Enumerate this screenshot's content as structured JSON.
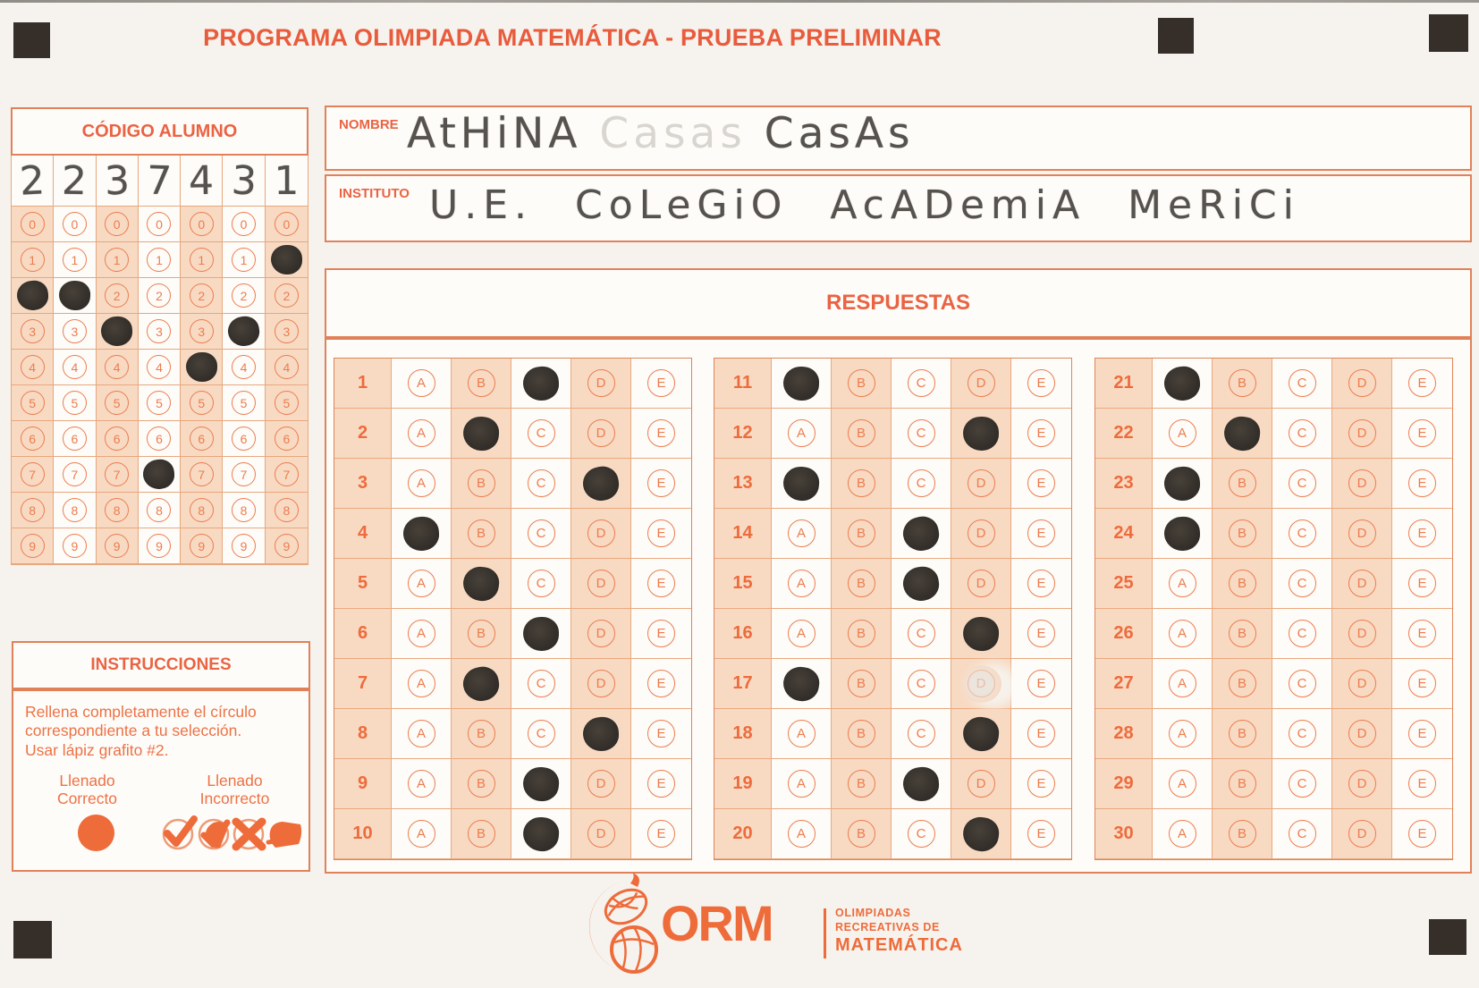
{
  "page": {
    "title": "PROGRAMA OLIMPIADA MATEMÁTICA - PRUEBA PRELIMINAR"
  },
  "colors": {
    "accent": "#ee6b3a",
    "tint": "#f8dac3",
    "grid_line": "#eaa87e",
    "pencil_mark": "#332e29",
    "pencil_handwriting": "#56524d",
    "registration_mark": "#362f29"
  },
  "codigo": {
    "title": "CÓDIGO ALUMNO",
    "handwritten_digits": [
      "2",
      "2",
      "3",
      "7",
      "4",
      "3",
      "1"
    ],
    "bubble_digits": [
      "0",
      "1",
      "2",
      "3",
      "4",
      "5",
      "6",
      "7",
      "8",
      "9"
    ],
    "filled_per_column": [
      2,
      2,
      3,
      7,
      4,
      3,
      1
    ]
  },
  "fields": {
    "nombre": {
      "label": "NOMBRE",
      "value_part1": "AtHiNA",
      "erased_ghost": "Casas",
      "value_part2": "CasAs"
    },
    "instituto": {
      "label": "INSTITUTO",
      "value": "U.E. CoLeGiO AcADemiA MeRiCi"
    }
  },
  "respuestas": {
    "title": "RESPUESTAS",
    "options": [
      "A",
      "B",
      "C",
      "D",
      "E"
    ],
    "blocks": [
      {
        "from": 1,
        "to": 10
      },
      {
        "from": 11,
        "to": 20
      },
      {
        "from": 21,
        "to": 30
      }
    ],
    "answers": [
      {
        "q": 1,
        "marked": "C"
      },
      {
        "q": 2,
        "marked": "B"
      },
      {
        "q": 3,
        "marked": "D"
      },
      {
        "q": 4,
        "marked": "A"
      },
      {
        "q": 5,
        "marked": "B"
      },
      {
        "q": 6,
        "marked": "C"
      },
      {
        "q": 7,
        "marked": "B"
      },
      {
        "q": 8,
        "marked": "D"
      },
      {
        "q": 9,
        "marked": "C"
      },
      {
        "q": 10,
        "marked": "C"
      },
      {
        "q": 11,
        "marked": "A"
      },
      {
        "q": 12,
        "marked": "D"
      },
      {
        "q": 13,
        "marked": "A"
      },
      {
        "q": 14,
        "marked": "C"
      },
      {
        "q": 15,
        "marked": "C"
      },
      {
        "q": 16,
        "marked": "D"
      },
      {
        "q": 17,
        "marked": "A",
        "erased": "D"
      },
      {
        "q": 18,
        "marked": "D"
      },
      {
        "q": 19,
        "marked": "C"
      },
      {
        "q": 20,
        "marked": "D"
      },
      {
        "q": 21,
        "marked": "A"
      },
      {
        "q": 22,
        "marked": "B"
      },
      {
        "q": 23,
        "marked": "A"
      },
      {
        "q": 24,
        "marked": "A"
      },
      {
        "q": 25,
        "marked": null
      },
      {
        "q": 26,
        "marked": null
      },
      {
        "q": 27,
        "marked": null
      },
      {
        "q": 28,
        "marked": null
      },
      {
        "q": 29,
        "marked": null
      },
      {
        "q": 30,
        "marked": null
      }
    ]
  },
  "instrucciones": {
    "title": "INSTRUCCIONES",
    "body_lines": [
      "Rellena completamente el círculo",
      "correspondiente a tu selección.",
      "Usar lápiz grafito #2."
    ],
    "correct_line1": "Llenado",
    "correct_line2": "Correcto",
    "incorrect_line1": "Llenado",
    "incorrect_line2": "Incorrecto"
  },
  "logo": {
    "acronym": "ORM",
    "tagline_line1": "OLIMPIADAS",
    "tagline_line2": "RECREATIVAS DE",
    "tagline_line3": "MATEMÁTICA"
  }
}
